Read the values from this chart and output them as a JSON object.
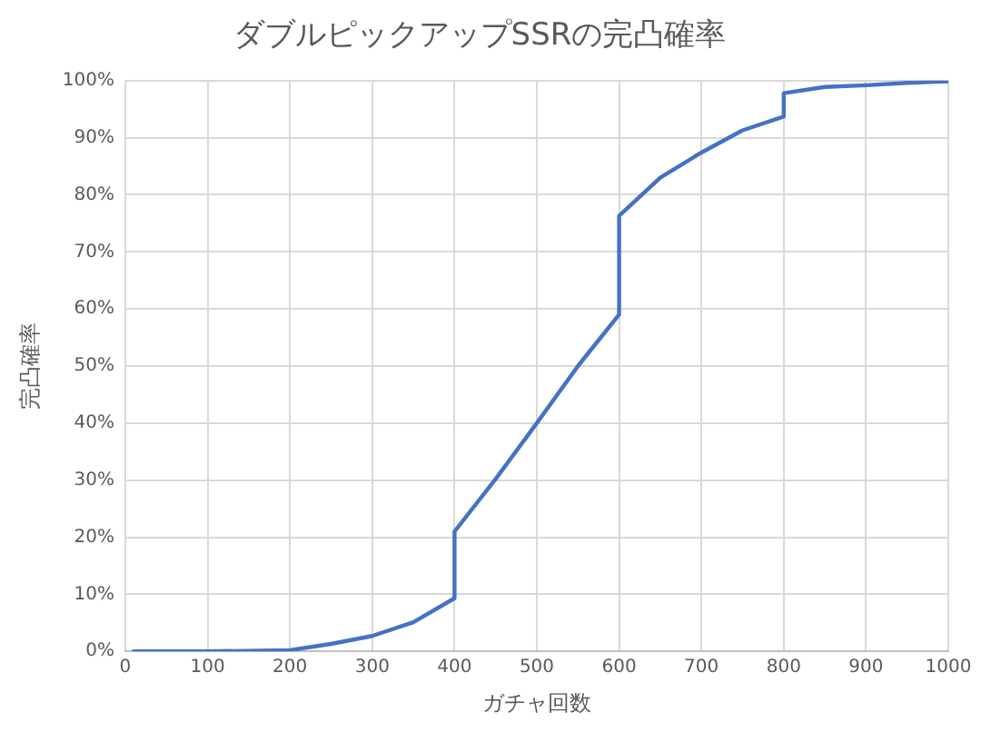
{
  "chart_data": {
    "type": "line",
    "title": "ダブルピックアップSSRの完凸確率",
    "xlabel": "ガチャ回数",
    "ylabel": "完凸確率",
    "series": [
      {
        "color": "#4472c4",
        "x": [
          10,
          100,
          200,
          250,
          300,
          350,
          400,
          400,
          450,
          500,
          550,
          600,
          600,
          650,
          700,
          750,
          800,
          800,
          850,
          900,
          950,
          1000
        ],
        "values": [
          0,
          0,
          0.2,
          1.3,
          2.7,
          5.1,
          9.3,
          21,
          30.2,
          40,
          50,
          59,
          76.3,
          83,
          87.4,
          91.3,
          93.7,
          97.8,
          98.9,
          99.2,
          99.6,
          99.9
        ]
      }
    ],
    "xlim": [
      0,
      1000
    ],
    "xticks": [
      0,
      100,
      200,
      300,
      400,
      500,
      600,
      700,
      800,
      900,
      1000
    ],
    "ylim": [
      0,
      100
    ],
    "yticks": [
      {
        "value": 0,
        "label": "0%"
      },
      {
        "value": 10,
        "label": "10%"
      },
      {
        "value": 20,
        "label": "20%"
      },
      {
        "value": 30,
        "label": "30%"
      },
      {
        "value": 40,
        "label": "40%"
      },
      {
        "value": 50,
        "label": "50%"
      },
      {
        "value": 60,
        "label": "60%"
      },
      {
        "value": 70,
        "label": "70%"
      },
      {
        "value": 80,
        "label": "80%"
      },
      {
        "value": 90,
        "label": "90%"
      },
      {
        "value": 100,
        "label": "100%"
      }
    ],
    "grid": true,
    "legend": false,
    "marker": "none",
    "line_style": "solid"
  }
}
